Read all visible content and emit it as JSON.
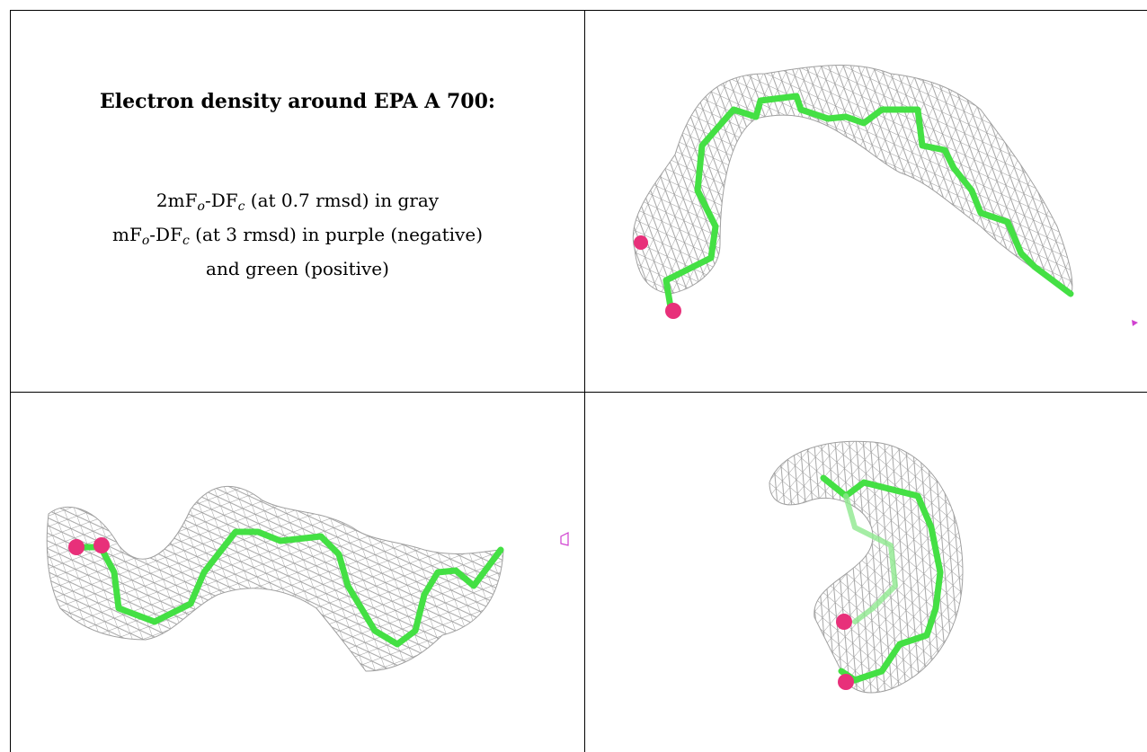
{
  "title": "Electron density around EPA A 700:",
  "legend": {
    "line1": {
      "a": "2mF",
      "a_sub": "o",
      "b": "-DF",
      "b_sub": "c",
      "rest": " (at 0.7 rmsd) in gray"
    },
    "line2": {
      "a": "mF",
      "a_sub": "o",
      "b": "-DF",
      "b_sub": "c",
      "rest": " (at 3 rmsd) in purple (negative)"
    },
    "line3": "and green (positive)"
  },
  "colors": {
    "mesh": "#9a9a9a",
    "ligand": "#44e044",
    "oxygen": "#e8307a",
    "negative": "#d040d0"
  },
  "panels": [
    "view-top-right",
    "view-bottom-left",
    "view-bottom-right"
  ]
}
